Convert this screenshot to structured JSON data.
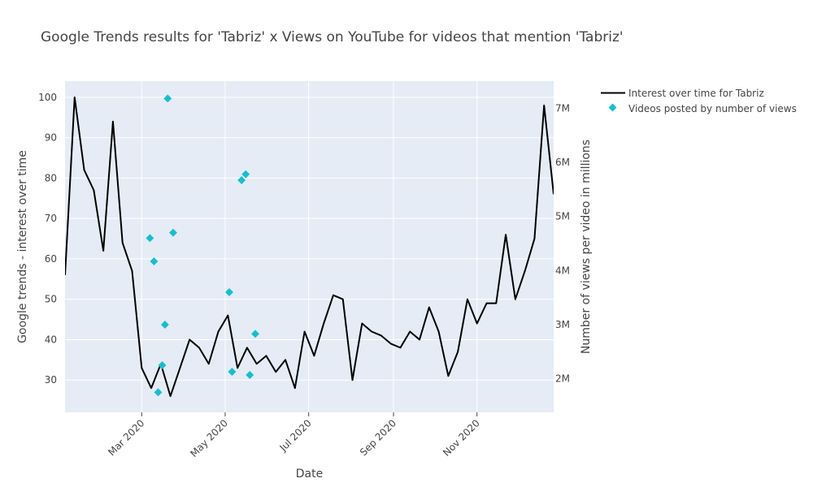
{
  "chart_data": {
    "type": "line",
    "title": "Google Trends results for 'Tabriz' x Views on YouTube for videos that mention 'Tabriz'",
    "xlabel": "Date",
    "ylabel": "Google trends - interest over time",
    "y2label": "Number of views per video in millions",
    "x_tick_labels": [
      "Mar 2020",
      "May 2020",
      "Jul 2020",
      "Sep 2020",
      "Nov 2020"
    ],
    "x_tick_dates": [
      "2020-03-01",
      "2020-05-01",
      "2020-07-01",
      "2020-09-01",
      "2020-11-01"
    ],
    "xlim": [
      "2020-01-05",
      "2020-12-27"
    ],
    "ylim": [
      22,
      104
    ],
    "y_ticks": [
      30,
      40,
      50,
      60,
      70,
      80,
      90,
      100
    ],
    "y2lim": [
      1.38,
      7.5
    ],
    "y2_ticks": [
      2,
      3,
      4,
      5,
      6,
      7
    ],
    "y2_tick_labels": [
      "2M",
      "3M",
      "4M",
      "5M",
      "6M",
      "7M"
    ],
    "grid": true,
    "legend_position": "top-right",
    "series": [
      {
        "name": "Interest over time for Tabriz",
        "axis": "y",
        "mode": "line",
        "color": "#000000",
        "x": [
          "2020-01-05",
          "2020-01-12",
          "2020-01-19",
          "2020-01-26",
          "2020-02-02",
          "2020-02-09",
          "2020-02-16",
          "2020-02-23",
          "2020-03-01",
          "2020-03-08",
          "2020-03-15",
          "2020-03-22",
          "2020-03-29",
          "2020-04-05",
          "2020-04-12",
          "2020-04-19",
          "2020-04-26",
          "2020-05-03",
          "2020-05-10",
          "2020-05-17",
          "2020-05-24",
          "2020-05-31",
          "2020-06-07",
          "2020-06-14",
          "2020-06-21",
          "2020-06-28",
          "2020-07-05",
          "2020-07-12",
          "2020-07-19",
          "2020-07-26",
          "2020-08-02",
          "2020-08-09",
          "2020-08-16",
          "2020-08-23",
          "2020-08-30",
          "2020-09-06",
          "2020-09-13",
          "2020-09-20",
          "2020-09-27",
          "2020-10-04",
          "2020-10-11",
          "2020-10-18",
          "2020-10-25",
          "2020-11-01",
          "2020-11-08",
          "2020-11-15",
          "2020-11-22",
          "2020-11-29",
          "2020-12-06",
          "2020-12-13",
          "2020-12-20",
          "2020-12-27"
        ],
        "values": [
          56,
          100,
          82,
          77,
          62,
          94,
          64,
          57,
          33,
          28,
          34,
          26,
          33,
          40,
          38,
          34,
          42,
          46,
          33,
          38,
          34,
          36,
          32,
          35,
          28,
          42,
          36,
          44,
          51,
          50,
          30,
          44,
          42,
          41,
          39,
          38,
          42,
          40,
          48,
          42,
          31,
          37,
          50,
          44,
          49,
          49,
          66,
          50,
          57,
          65,
          98,
          76
        ]
      },
      {
        "name": "Videos posted by number of views",
        "axis": "y2",
        "mode": "markers",
        "color": "#17becf",
        "x": [
          "2020-03-07",
          "2020-03-10",
          "2020-03-13",
          "2020-03-16",
          "2020-03-18",
          "2020-03-20",
          "2020-03-24",
          "2020-05-04",
          "2020-05-06",
          "2020-05-13",
          "2020-05-16",
          "2020-05-19",
          "2020-05-23"
        ],
        "values": [
          4.6,
          4.17,
          1.75,
          2.25,
          3.0,
          7.18,
          4.7,
          3.6,
          2.13,
          5.67,
          5.78,
          2.07,
          2.83
        ]
      }
    ]
  }
}
